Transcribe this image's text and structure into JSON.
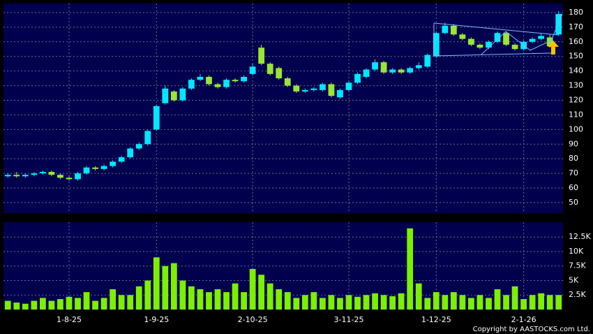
{
  "chart_data": [
    {
      "type": "candlestick",
      "categories": [
        null,
        null,
        null,
        null,
        null,
        null,
        null,
        "1-8-25",
        null,
        null,
        null,
        null,
        null,
        null,
        null,
        null,
        null,
        "1-9-25",
        null,
        null,
        null,
        null,
        null,
        null,
        null,
        null,
        null,
        null,
        "2-10-25",
        null,
        null,
        null,
        null,
        null,
        null,
        null,
        null,
        null,
        null,
        "3-11-25",
        null,
        null,
        null,
        null,
        null,
        null,
        null,
        null,
        null,
        "1-12-25",
        null,
        null,
        null,
        null,
        null,
        null,
        null,
        null,
        null,
        "2-1-26",
        null,
        null,
        null,
        null
      ],
      "open": [
        68,
        69,
        68,
        69,
        70,
        71,
        69,
        67,
        66,
        70,
        74,
        73,
        75,
        78,
        81,
        87,
        90,
        100,
        118,
        126,
        120,
        128,
        134,
        136,
        131,
        129,
        134,
        133,
        138,
        156,
        145,
        142,
        135,
        130,
        126,
        127,
        127,
        131,
        122,
        127,
        132,
        136,
        141,
        146,
        139,
        141,
        139,
        142,
        143,
        150,
        166,
        171,
        165,
        162,
        158,
        156,
        160,
        166,
        158,
        155,
        160,
        162,
        163,
        165
      ],
      "high": [
        70,
        71,
        70,
        71,
        72,
        72,
        70,
        68,
        71,
        75,
        75,
        76,
        79,
        82,
        88,
        91,
        100,
        117,
        130,
        127,
        129,
        135,
        138,
        137,
        132,
        135,
        135,
        137,
        145,
        158,
        146,
        143,
        136,
        131,
        128,
        129,
        132,
        132,
        128,
        133,
        139,
        142,
        148,
        147,
        142,
        142,
        143,
        146,
        152,
        167,
        173,
        172,
        166,
        163,
        159,
        161,
        167,
        167,
        159,
        161,
        163,
        166,
        165,
        181
      ],
      "low": [
        67,
        67,
        67,
        68,
        69,
        68,
        66,
        65,
        65,
        69,
        72,
        72,
        74,
        77,
        80,
        86,
        89,
        99,
        117,
        119,
        119,
        127,
        133,
        130,
        128,
        128,
        132,
        132,
        137,
        144,
        137,
        134,
        129,
        125,
        125,
        126,
        126,
        122,
        121,
        126,
        131,
        135,
        140,
        138,
        138,
        138,
        138,
        141,
        142,
        149,
        165,
        164,
        161,
        157,
        155,
        155,
        159,
        157,
        154,
        154,
        159,
        161,
        156,
        164
      ],
      "close": [
        69,
        68,
        69,
        70,
        71,
        69,
        67,
        66,
        70,
        74,
        73,
        75,
        78,
        81,
        87,
        90,
        99,
        116,
        128,
        120,
        128,
        134,
        136,
        131,
        129,
        134,
        133,
        136,
        143,
        145,
        138,
        135,
        130,
        126,
        127,
        128,
        131,
        123,
        127,
        132,
        138,
        141,
        146,
        139,
        141,
        139,
        142,
        144,
        151,
        166,
        171,
        165,
        162,
        158,
        156,
        160,
        166,
        158,
        155,
        160,
        162,
        164,
        157,
        179
      ],
      "up_color": "#00e8ff",
      "down_color": "#99e635",
      "ylim": [
        42.8,
        186.2
      ],
      "yticks": [
        50,
        60,
        70,
        80,
        90,
        100,
        110,
        120,
        130,
        140,
        150,
        160,
        170,
        180
      ],
      "grid": true
    },
    {
      "type": "bar",
      "values": [
        1500,
        1200,
        1000,
        1500,
        2000,
        1500,
        1800,
        2200,
        2000,
        3000,
        1500,
        2000,
        3500,
        2500,
        2500,
        4000,
        5000,
        9000,
        7500,
        8000,
        5000,
        4000,
        3500,
        3000,
        3500,
        3000,
        4500,
        3000,
        7000,
        6000,
        4500,
        3500,
        3000,
        2000,
        2500,
        3000,
        2000,
        2500,
        2000,
        2500,
        2200,
        2500,
        2800,
        2500,
        2300,
        2800,
        14000,
        4500,
        2000,
        3000,
        2500,
        3000,
        2500,
        2000,
        2500,
        2000,
        3500,
        2500,
        4000,
        1800,
        2500,
        2800,
        2500,
        2500
      ],
      "color": "#7cf000",
      "ylim": [
        0,
        15060
      ],
      "yticks": [
        {
          "value": 2500,
          "label": "2.5K"
        },
        {
          "value": 5000,
          "label": "5K"
        },
        {
          "value": 7500,
          "label": "7.5K"
        },
        {
          "value": 10000,
          "label": "10K"
        },
        {
          "value": 12500,
          "label": "12.5K"
        }
      ],
      "grid": true
    }
  ],
  "copyright": "Copyright by AASTOCKS.com Ltd."
}
